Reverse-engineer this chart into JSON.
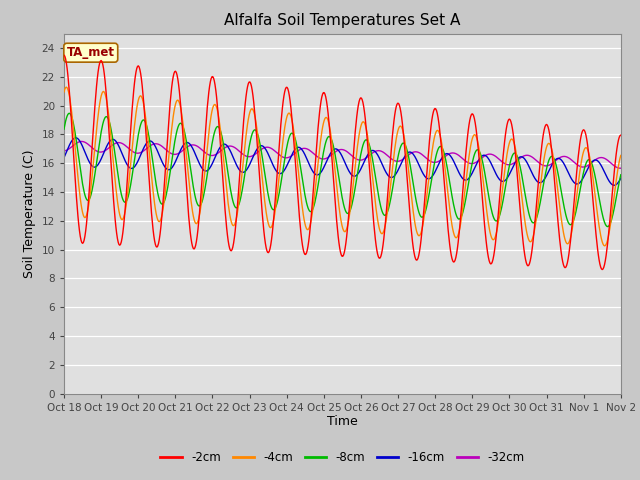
{
  "title": "Alfalfa Soil Temperatures Set A",
  "xlabel": "Time",
  "ylabel": "Soil Temperature (C)",
  "annotation": "TA_met",
  "ylim": [
    0,
    25
  ],
  "yticks": [
    0,
    2,
    4,
    6,
    8,
    10,
    12,
    14,
    16,
    18,
    20,
    22,
    24
  ],
  "xtick_labels": [
    "Oct 18",
    "Oct 19",
    "Oct 20",
    "Oct 21",
    "Oct 22",
    "Oct 23",
    "Oct 24",
    "Oct 25",
    "Oct 26",
    "Oct 27",
    "Oct 28",
    "Oct 29",
    "Oct 30",
    "Oct 31",
    "Nov 1",
    "Nov 2"
  ],
  "series": {
    "-2cm": {
      "color": "#ff0000",
      "lw": 1.0
    },
    "-4cm": {
      "color": "#ff8800",
      "lw": 1.0
    },
    "-8cm": {
      "color": "#00bb00",
      "lw": 1.0
    },
    "-16cm": {
      "color": "#0000cc",
      "lw": 1.0
    },
    "-32cm": {
      "color": "#bb00bb",
      "lw": 1.0
    }
  },
  "fig_facecolor": "#c8c8c8",
  "plot_facecolor": "#e0e0e0",
  "title_fontsize": 11,
  "axis_label_fontsize": 9,
  "tick_fontsize": 7.5,
  "n_points": 720
}
